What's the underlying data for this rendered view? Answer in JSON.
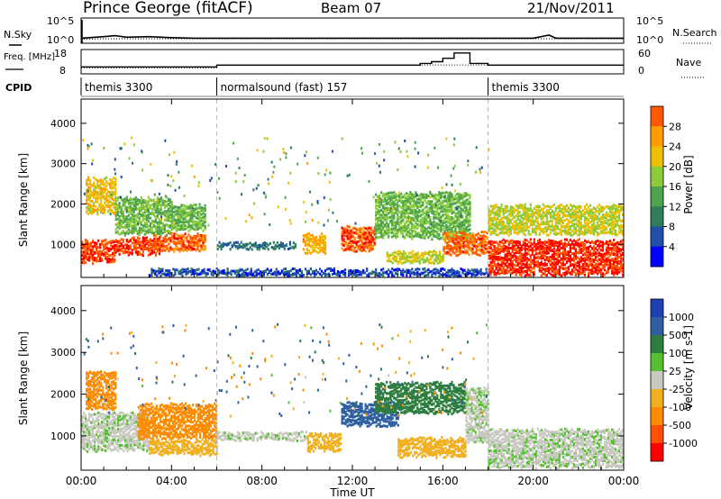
{
  "header": {
    "title": "Prince George (fitACF)",
    "beam": "Beam 07",
    "date": "21/Nov/2011"
  },
  "colors": {
    "power_scale": [
      "#0000ff",
      "#1f4fa8",
      "#2e7d5b",
      "#4fa34f",
      "#8ccc3a",
      "#f0c000",
      "#ff9d00",
      "#ff5a00",
      "#ff0000"
    ],
    "velocity_scale": [
      "#2040b0",
      "#2f5fa0",
      "#2e7d40",
      "#55c030",
      "#c8c8c0",
      "#f0b020",
      "#ff8c00",
      "#ff5000",
      "#ff0000"
    ],
    "ground_scatter": "#c8c8c0"
  },
  "chart_data": [
    {
      "type": "line",
      "panel": "noise",
      "left_axis": {
        "label": "N.Sky",
        "ticks": [
          "10^5",
          "10^0"
        ]
      },
      "right_axis": {
        "label": "N.Search",
        "ticks": [
          "10^5",
          "10^0"
        ]
      },
      "x": [
        0,
        1,
        1.5,
        2,
        3,
        4,
        5,
        6,
        8,
        10,
        12,
        14,
        16,
        18,
        20,
        20.7,
        21,
        22,
        24
      ],
      "series": [
        {
          "name": "N.Sky",
          "values": [
            1.0,
            1.3,
            1.5,
            1.2,
            1.3,
            1.1,
            1.0,
            1.0,
            1.0,
            1.0,
            1.0,
            1.0,
            1.0,
            1.0,
            1.0,
            1.6,
            1.0,
            1.0,
            1.0
          ]
        },
        {
          "name": "N.Search",
          "values": [
            0.8,
            0.9,
            0.9,
            0.9,
            0.9,
            0.9,
            0.9,
            0.9,
            0.9,
            0.9,
            0.9,
            0.9,
            0.9,
            0.9,
            0.9,
            0.9,
            0.9,
            0.9,
            0.9
          ]
        }
      ]
    },
    {
      "type": "line",
      "panel": "frequency",
      "left_axis": {
        "label": "Freq. [MHz]",
        "ticks": [
          "18",
          "8"
        ]
      },
      "right_axis": {
        "label": "Nave",
        "ticks": [
          "60",
          "0"
        ]
      },
      "x": [
        0,
        6,
        6,
        14,
        14.5,
        15,
        15.5,
        16,
        16.5,
        17.2,
        17.2,
        18,
        24
      ],
      "series": [
        {
          "name": "Freq.",
          "values": [
            10,
            10,
            11,
            11,
            11,
            12,
            13,
            15,
            18,
            18,
            12,
            11,
            11
          ]
        },
        {
          "name": "Nave",
          "values": [
            15,
            15,
            22,
            22,
            22,
            22,
            22,
            22,
            22,
            22,
            22,
            22,
            22
          ]
        }
      ]
    },
    {
      "type": "table",
      "panel": "cpid",
      "label": "CPID",
      "segments": [
        {
          "name": "themis 3300",
          "start": 0,
          "end": 6
        },
        {
          "name": "normalsound (fast) 157",
          "start": 6,
          "end": 18
        },
        {
          "name": "themis 3300",
          "start": 18,
          "end": 24
        }
      ]
    },
    {
      "type": "heatmap",
      "panel": "power",
      "ylabel": "Slant Range [km]",
      "yticks": [
        1000,
        2000,
        3000,
        4000
      ],
      "ylim": [
        180,
        4600
      ],
      "xlim": [
        0,
        24
      ],
      "colorbar": {
        "label": "Power [dB]",
        "ticks": [
          4,
          8,
          12,
          16,
          20,
          24,
          28
        ],
        "range": [
          0,
          32
        ]
      },
      "regions": [
        {
          "t0": 0,
          "t1": 1.5,
          "r0": 600,
          "r1": 1100,
          "value": 28
        },
        {
          "t0": 0.2,
          "t1": 1.5,
          "r0": 1800,
          "r1": 2700,
          "value": 20
        },
        {
          "t0": 1.5,
          "t1": 3.5,
          "r0": 800,
          "r1": 1200,
          "value": 28
        },
        {
          "t0": 1.5,
          "t1": 4,
          "r0": 1300,
          "r1": 2200,
          "value": 14
        },
        {
          "t0": 3.2,
          "t1": 5.5,
          "r0": 900,
          "r1": 1300,
          "value": 26
        },
        {
          "t0": 4,
          "t1": 5.5,
          "r0": 1400,
          "r1": 2000,
          "value": 14
        },
        {
          "t0": 6,
          "t1": 9.5,
          "r0": 950,
          "r1": 1080,
          "value": 8
        },
        {
          "t0": 9.8,
          "t1": 10.8,
          "r0": 850,
          "r1": 1300,
          "value": 22
        },
        {
          "t0": 11.5,
          "t1": 13,
          "r0": 900,
          "r1": 1450,
          "value": 27
        },
        {
          "t0": 13,
          "t1": 17.2,
          "r0": 1200,
          "r1": 2300,
          "value": 14
        },
        {
          "t0": 13.5,
          "t1": 16,
          "r0": 600,
          "r1": 850,
          "value": 18
        },
        {
          "t0": 16,
          "t1": 18,
          "r0": 800,
          "r1": 1300,
          "value": 26
        },
        {
          "t0": 18,
          "t1": 24,
          "r0": 300,
          "r1": 1150,
          "value": 29
        },
        {
          "t0": 18,
          "t1": 24,
          "r0": 1300,
          "r1": 2000,
          "value": 18
        },
        {
          "t0": 3,
          "t1": 18,
          "r0": 250,
          "r1": 420,
          "value": 5
        }
      ]
    },
    {
      "type": "heatmap",
      "panel": "velocity",
      "ylabel": "Slant Range [km]",
      "yticks": [
        1000,
        2000,
        3000,
        4000
      ],
      "ylim": [
        180,
        4600
      ],
      "xlim": [
        0,
        24
      ],
      "colorbar": {
        "label": "Velocity [m s-1]",
        "ticks": [
          1000,
          500,
          100,
          25,
          -25,
          -100,
          -500,
          -1000
        ]
      },
      "regions": [
        {
          "t0": 0,
          "t1": 3,
          "r0": 700,
          "r1": 1600,
          "value": 0
        },
        {
          "t0": 0.2,
          "t1": 1.5,
          "r0": 1700,
          "r1": 2600,
          "value": -300
        },
        {
          "t0": 2.5,
          "t1": 6,
          "r0": 1000,
          "r1": 1800,
          "value": -400
        },
        {
          "t0": 3,
          "t1": 6,
          "r0": 600,
          "r1": 950,
          "value": -80
        },
        {
          "t0": 6,
          "t1": 10,
          "r0": 950,
          "r1": 1100,
          "value": 0
        },
        {
          "t0": 10,
          "t1": 11.5,
          "r0": 700,
          "r1": 1100,
          "value": -80
        },
        {
          "t0": 11.5,
          "t1": 14,
          "r0": 1300,
          "r1": 1800,
          "value": 300
        },
        {
          "t0": 13,
          "t1": 17,
          "r0": 1600,
          "r1": 2300,
          "value": 80
        },
        {
          "t0": 14,
          "t1": 17,
          "r0": 550,
          "r1": 1000,
          "value": -60
        },
        {
          "t0": 17,
          "t1": 18,
          "r0": 900,
          "r1": 2200,
          "value": 0
        },
        {
          "t0": 18,
          "t1": 24,
          "r0": 300,
          "r1": 1200,
          "value": 0
        }
      ]
    }
  ],
  "xaxis": {
    "label": "Time UT",
    "ticks": [
      "00:00",
      "04:00",
      "08:00",
      "12:00",
      "16:00",
      "20:00",
      "00:00"
    ]
  }
}
